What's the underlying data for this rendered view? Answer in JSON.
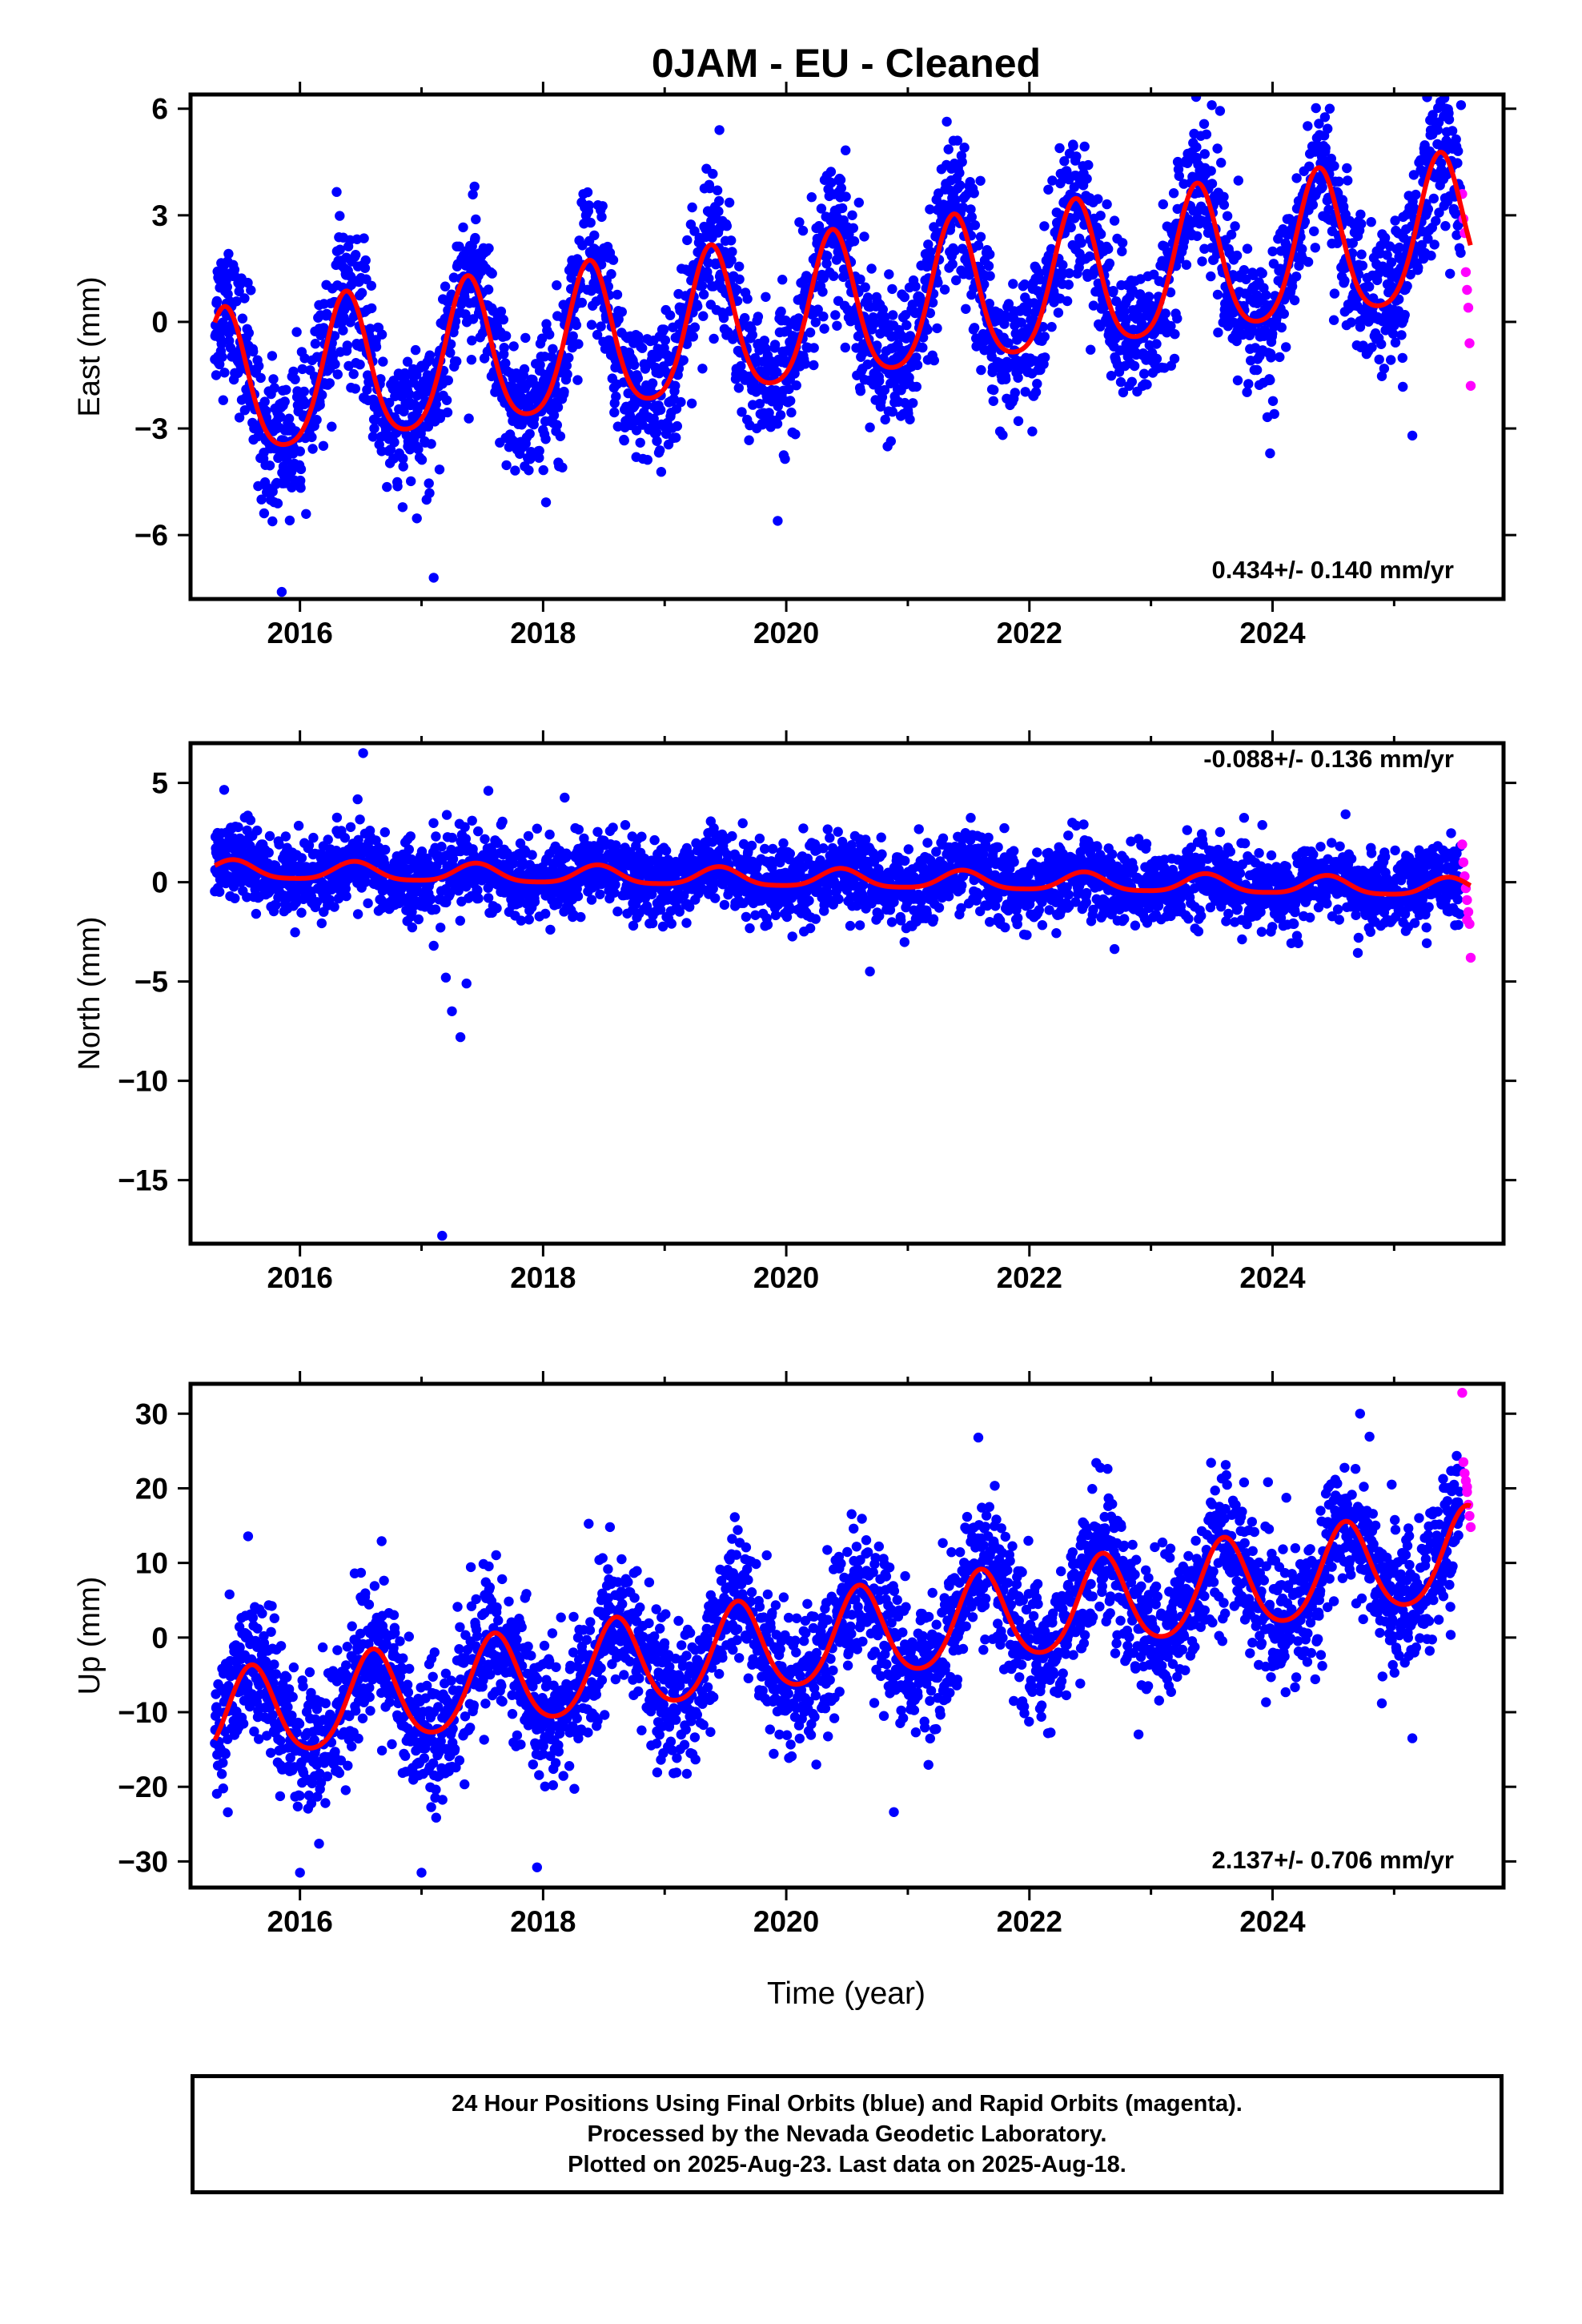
{
  "title": "0JAM  - EU - Cleaned",
  "xlabel": "Time (year)",
  "footer": {
    "line1": "24 Hour Positions Using Final Orbits (blue) and Rapid Orbits (magenta).",
    "line2": "Processed by the Nevada Geodetic Laboratory.",
    "line3": "Plotted on 2025-Aug-23. Last data on 2025-Aug-18."
  },
  "colors": {
    "final": "#0000ff",
    "rapid": "#ff00ff",
    "model": "#ff0000",
    "axes": "#000000"
  },
  "chart_data": [
    {
      "type": "scatter",
      "ylabel": "East (mm)",
      "xlim": [
        2015.1,
        2025.9
      ],
      "ylim": [
        -7.8,
        6.4
      ],
      "xticks": [
        2016,
        2018,
        2020,
        2022,
        2024
      ],
      "yticks": [
        -6,
        -3,
        0,
        3,
        6
      ],
      "rate_label": "0.434+/- 0.140 mm/yr",
      "rate_position": "bottom-right",
      "data_start": 2015.3,
      "rapid_start": 2025.55,
      "data_end": 2025.63,
      "model": {
        "offset": -2.0,
        "rate": 0.434,
        "t0": 2015.3,
        "annual_amp": 2.05,
        "annual_peak": 2020.38,
        "semi_amp": 0.35,
        "semi_peak": 2020.38
      },
      "scatter": 1.0,
      "outliers": [
        [
          2015.85,
          -7.6
        ],
        [
          2017.1,
          -7.2
        ],
        [
          2019.45,
          5.4
        ],
        [
          2023.5,
          6.1
        ],
        [
          2024.47,
          6.0
        ],
        [
          2025.55,
          6.1
        ],
        [
          2019.93,
          -5.6
        ],
        [
          2023.98,
          -3.7
        ],
        [
          2025.15,
          -3.2
        ]
      ],
      "rapid_points": [
        [
          2025.56,
          3.6
        ],
        [
          2025.58,
          2.5
        ],
        [
          2025.59,
          1.4
        ],
        [
          2025.6,
          0.9
        ],
        [
          2025.61,
          0.4
        ],
        [
          2025.62,
          -0.6
        ],
        [
          2025.63,
          -1.8
        ],
        [
          2025.57,
          2.9
        ]
      ]
    },
    {
      "type": "scatter",
      "ylabel": "North (mm)",
      "xlim": [
        2015.1,
        2025.9
      ],
      "ylim": [
        -18.2,
        7.0
      ],
      "xticks": [
        2016,
        2018,
        2020,
        2022,
        2024
      ],
      "yticks": [
        -15,
        -10,
        -5,
        0,
        5
      ],
      "rate_label": "-0.088+/- 0.136 mm/yr",
      "rate_position": "top-right",
      "data_start": 2015.3,
      "rapid_start": 2025.55,
      "data_end": 2025.63,
      "model": {
        "offset": 0.6,
        "rate": -0.088,
        "t0": 2015.3,
        "annual_amp": 0.45,
        "annual_peak": 2020.45,
        "semi_amp": 0.1,
        "semi_peak": 2020.45
      },
      "scatter": 0.95,
      "outliers": [
        [
          2017.17,
          -17.8
        ],
        [
          2017.25,
          -6.5
        ],
        [
          2017.32,
          -7.8
        ],
        [
          2017.37,
          -5.1
        ],
        [
          2016.52,
          6.5
        ],
        [
          2017.55,
          4.6
        ],
        [
          2017.1,
          -3.2
        ],
        [
          2017.2,
          -4.8
        ]
      ],
      "rapid_points": [
        [
          2025.56,
          1.9
        ],
        [
          2025.57,
          1.0
        ],
        [
          2025.58,
          0.3
        ],
        [
          2025.59,
          -0.3
        ],
        [
          2025.6,
          -0.9
        ],
        [
          2025.61,
          -1.5
        ],
        [
          2025.62,
          -2.1
        ],
        [
          2025.63,
          -3.8
        ],
        [
          2025.6,
          -1.9
        ]
      ]
    },
    {
      "type": "scatter",
      "ylabel": "Up (mm)",
      "xlim": [
        2015.1,
        2025.9
      ],
      "ylim": [
        -33.5,
        34.0
      ],
      "xticks": [
        2016,
        2018,
        2020,
        2022,
        2024
      ],
      "yticks": [
        -30,
        -20,
        -10,
        0,
        10,
        20,
        30
      ],
      "rate_label": "2.137+/- 0.706 mm/yr",
      "rate_position": "bottom-right",
      "data_start": 2015.3,
      "rapid_start": 2025.55,
      "data_end": 2025.63,
      "model": {
        "offset": -11.2,
        "rate": 2.137,
        "t0": 2015.3,
        "annual_amp": 6.1,
        "annual_peak": 2020.6,
        "semi_amp": 0.8,
        "semi_peak": 2020.6
      },
      "scatter": 4.6,
      "outliers": [
        [
          2016.0,
          -31.5
        ],
        [
          2017.0,
          -31.5
        ],
        [
          2017.95,
          -30.8
        ],
        [
          2021.58,
          26.8
        ],
        [
          2024.72,
          30.0
        ],
        [
          2024.98,
          20.5
        ],
        [
          2025.15,
          -13.5
        ],
        [
          2016.45,
          8.6
        ],
        [
          2018.55,
          14.8
        ]
      ],
      "rapid_points": [
        [
          2025.56,
          32.8
        ],
        [
          2025.57,
          23.5
        ],
        [
          2025.58,
          22.0
        ],
        [
          2025.59,
          21.0
        ],
        [
          2025.6,
          19.5
        ],
        [
          2025.61,
          17.8
        ],
        [
          2025.62,
          16.3
        ],
        [
          2025.63,
          14.8
        ],
        [
          2025.6,
          20.2
        ]
      ]
    }
  ]
}
